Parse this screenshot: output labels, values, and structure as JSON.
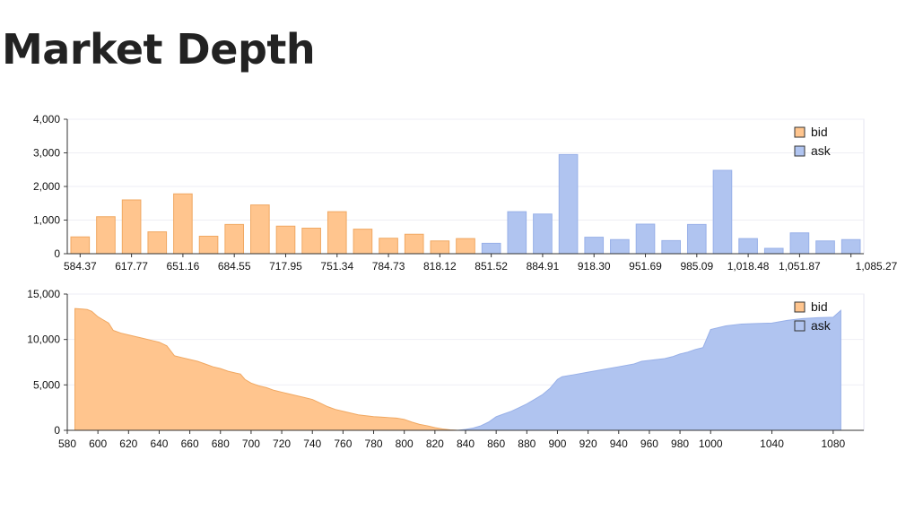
{
  "page": {
    "title": "Market Depth"
  },
  "colors": {
    "bid": "#ffc58e",
    "ask": "#b0c4f0",
    "bid_stroke": "#f0a862",
    "ask_stroke": "#98b0e8"
  },
  "chart_data": [
    {
      "type": "bar",
      "title": "",
      "xlabel": "",
      "ylabel": "",
      "ylim": [
        0,
        4000
      ],
      "yticks": [
        "0",
        "1,000",
        "2,000",
        "3,000",
        "4,000"
      ],
      "ytick_values": [
        0,
        1000,
        2000,
        3000,
        4000
      ],
      "xtick_labels": [
        "584.37",
        "617.77",
        "651.16",
        "684.55",
        "717.95",
        "751.34",
        "784.73",
        "818.12",
        "851.52",
        "884.91",
        "918.30",
        "951.69",
        "985.09",
        "1,018.48",
        "1,051.87",
        "1,085.27"
      ],
      "legend": {
        "position": "top-right",
        "entries": [
          "bid",
          "ask"
        ]
      },
      "grid": "horizontal",
      "series": [
        {
          "name": "bid",
          "values": [
            500,
            1100,
            1600,
            650,
            1780,
            520,
            870,
            1450,
            820,
            760,
            1250,
            730,
            460,
            580,
            380,
            450,
            0,
            0,
            0,
            0,
            0,
            0,
            0,
            0,
            0,
            0,
            0,
            0,
            0,
            0,
            0
          ]
        },
        {
          "name": "ask",
          "values": [
            0,
            0,
            0,
            0,
            0,
            0,
            0,
            0,
            0,
            0,
            0,
            0,
            0,
            0,
            0,
            0,
            310,
            1250,
            1180,
            2950,
            490,
            420,
            880,
            390,
            870,
            2480,
            450,
            160,
            620,
            380,
            420
          ]
        }
      ]
    },
    {
      "type": "area",
      "title": "",
      "xlabel": "",
      "ylabel": "",
      "xlim": [
        580,
        1100
      ],
      "ylim": [
        0,
        15000
      ],
      "yticks": [
        "0",
        "5,000",
        "10,000",
        "15,000"
      ],
      "ytick_values": [
        0,
        5000,
        10000,
        15000
      ],
      "xticks": [
        "580",
        "600",
        "620",
        "640",
        "660",
        "680",
        "700",
        "720",
        "740",
        "760",
        "780",
        "800",
        "820",
        "840",
        "860",
        "880",
        "900",
        "920",
        "940",
        "960",
        "980",
        "1000",
        "1040",
        "1080"
      ],
      "xtick_values": [
        580,
        600,
        620,
        640,
        660,
        680,
        700,
        720,
        740,
        760,
        780,
        800,
        820,
        840,
        860,
        880,
        900,
        920,
        940,
        960,
        980,
        1000,
        1040,
        1080
      ],
      "legend": {
        "position": "top-right",
        "entries": [
          "bid",
          "ask"
        ]
      },
      "grid": "horizontal",
      "series": [
        {
          "name": "bid",
          "x": [
            585,
            590,
            593,
            596,
            600,
            603,
            607,
            610,
            615,
            620,
            625,
            630,
            635,
            640,
            645,
            650,
            655,
            660,
            665,
            670,
            675,
            680,
            685,
            690,
            693,
            696,
            700,
            705,
            710,
            715,
            720,
            725,
            730,
            735,
            740,
            745,
            750,
            755,
            760,
            765,
            770,
            775,
            780,
            785,
            790,
            795,
            800,
            805,
            810,
            815,
            820,
            825,
            830,
            835
          ],
          "y": [
            13400,
            13350,
            13300,
            13100,
            12500,
            12200,
            11800,
            11000,
            10700,
            10500,
            10300,
            10100,
            9900,
            9700,
            9300,
            8200,
            8000,
            7800,
            7600,
            7300,
            7000,
            6800,
            6500,
            6300,
            6200,
            5600,
            5200,
            4900,
            4700,
            4400,
            4200,
            4000,
            3800,
            3600,
            3400,
            3000,
            2600,
            2300,
            2100,
            1900,
            1700,
            1600,
            1500,
            1450,
            1400,
            1350,
            1200,
            900,
            650,
            500,
            300,
            150,
            50,
            0
          ]
        },
        {
          "name": "ask",
          "x": [
            835,
            840,
            845,
            850,
            855,
            860,
            865,
            870,
            875,
            880,
            885,
            890,
            895,
            900,
            903,
            910,
            920,
            930,
            940,
            950,
            955,
            960,
            965,
            970,
            975,
            980,
            985,
            990,
            995,
            1000,
            1010,
            1020,
            1030,
            1040,
            1050,
            1060,
            1070,
            1080,
            1085
          ],
          "y": [
            0,
            100,
            250,
            500,
            900,
            1500,
            1800,
            2100,
            2500,
            2900,
            3400,
            3900,
            4600,
            5600,
            5900,
            6100,
            6400,
            6700,
            7000,
            7300,
            7600,
            7700,
            7800,
            7900,
            8100,
            8400,
            8600,
            8900,
            9100,
            11100,
            11500,
            11700,
            11750,
            11800,
            12100,
            12300,
            12400,
            12450,
            13200
          ]
        }
      ]
    }
  ]
}
